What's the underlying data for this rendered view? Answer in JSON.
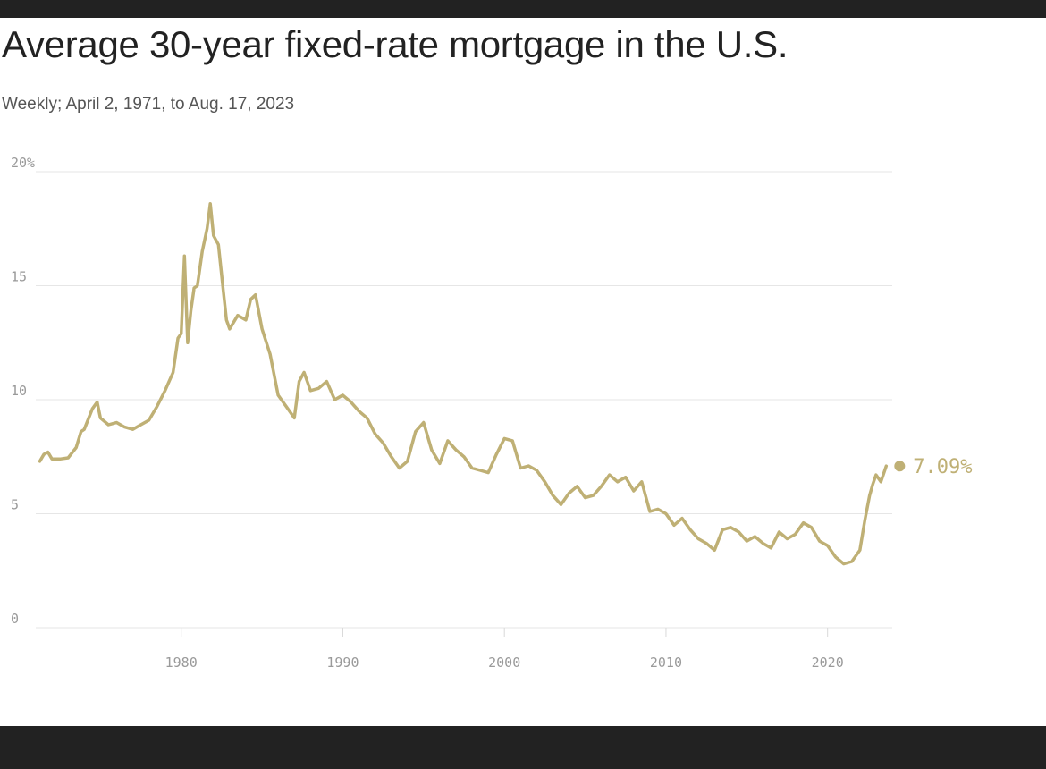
{
  "title": "Average 30-year fixed-rate mortgage in the U.S.",
  "subtitle": "Weekly; April 2, 1971, to Aug. 17, 2023",
  "colors": {
    "line": "#BFB075",
    "grid": "#e6e6e6",
    "ticks": "#9a9a9a"
  },
  "chart_data": {
    "type": "line",
    "title": "Average 30-year fixed-rate mortgage in the U.S.",
    "subtitle": "Weekly; April 2, 1971, to Aug. 17, 2023",
    "xlabel": "",
    "ylabel": "",
    "xlim": [
      1971,
      2024
    ],
    "ylim": [
      0,
      20
    ],
    "grid": true,
    "legend": "none",
    "x_ticks": [
      {
        "value": 1980,
        "label": "1980"
      },
      {
        "value": 1990,
        "label": "1990"
      },
      {
        "value": 2000,
        "label": "2000"
      },
      {
        "value": 2010,
        "label": "2010"
      },
      {
        "value": 2020,
        "label": "2020"
      }
    ],
    "y_ticks": [
      {
        "value": 0,
        "label": "0"
      },
      {
        "value": 5,
        "label": "5"
      },
      {
        "value": 10,
        "label": "10"
      },
      {
        "value": 15,
        "label": "15"
      },
      {
        "value": 20,
        "label": "20%"
      }
    ],
    "end_label": {
      "x": 2023.63,
      "y": 7.09,
      "text": "7.09%"
    },
    "series": [
      {
        "x": [
          1971.25,
          1971.5,
          1971.75,
          1972.0,
          1972.5,
          1973.0,
          1973.5,
          1973.8,
          1974.0,
          1974.5,
          1974.8,
          1975.0,
          1975.5,
          1976.0,
          1976.5,
          1977.0,
          1977.5,
          1978.0,
          1978.5,
          1979.0,
          1979.5,
          1979.8,
          1980.0,
          1980.2,
          1980.4,
          1980.6,
          1980.8,
          1981.0,
          1981.3,
          1981.6,
          1981.8,
          1982.0,
          1982.3,
          1982.6,
          1982.8,
          1983.0,
          1983.5,
          1984.0,
          1984.3,
          1984.6,
          1985.0,
          1985.5,
          1986.0,
          1986.5,
          1987.0,
          1987.3,
          1987.6,
          1988.0,
          1988.5,
          1989.0,
          1989.5,
          1990.0,
          1990.5,
          1991.0,
          1991.5,
          1992.0,
          1992.5,
          1993.0,
          1993.5,
          1994.0,
          1994.5,
          1995.0,
          1995.5,
          1996.0,
          1996.5,
          1997.0,
          1997.5,
          1998.0,
          1998.5,
          1999.0,
          1999.5,
          2000.0,
          2000.5,
          2001.0,
          2001.5,
          2002.0,
          2002.5,
          2003.0,
          2003.5,
          2004.0,
          2004.5,
          2005.0,
          2005.5,
          2006.0,
          2006.5,
          2007.0,
          2007.5,
          2008.0,
          2008.5,
          2009.0,
          2009.5,
          2010.0,
          2010.5,
          2011.0,
          2011.5,
          2012.0,
          2012.5,
          2013.0,
          2013.5,
          2014.0,
          2014.5,
          2015.0,
          2015.5,
          2016.0,
          2016.5,
          2017.0,
          2017.5,
          2018.0,
          2018.5,
          2019.0,
          2019.5,
          2020.0,
          2020.5,
          2021.0,
          2021.5,
          2022.0,
          2022.3,
          2022.6,
          2022.8,
          2023.0,
          2023.3,
          2023.63
        ],
        "y": [
          7.3,
          7.6,
          7.7,
          7.4,
          7.4,
          7.45,
          7.9,
          8.6,
          8.7,
          9.6,
          9.9,
          9.2,
          8.9,
          9.0,
          8.8,
          8.7,
          8.9,
          9.1,
          9.7,
          10.4,
          11.2,
          12.7,
          12.9,
          16.3,
          12.5,
          13.9,
          14.9,
          15.0,
          16.5,
          17.5,
          18.6,
          17.2,
          16.8,
          14.8,
          13.5,
          13.1,
          13.7,
          13.5,
          14.4,
          14.6,
          13.1,
          12.0,
          10.2,
          9.7,
          9.2,
          10.8,
          11.2,
          10.4,
          10.5,
          10.8,
          10.0,
          10.2,
          9.9,
          9.5,
          9.2,
          8.5,
          8.1,
          7.5,
          7.0,
          7.3,
          8.6,
          9.0,
          7.8,
          7.2,
          8.2,
          7.8,
          7.5,
          7.0,
          6.9,
          6.8,
          7.6,
          8.3,
          8.2,
          7.0,
          7.1,
          6.9,
          6.4,
          5.8,
          5.4,
          5.9,
          6.2,
          5.7,
          5.8,
          6.2,
          6.7,
          6.4,
          6.6,
          6.0,
          6.4,
          5.1,
          5.2,
          5.0,
          4.5,
          4.8,
          4.3,
          3.9,
          3.7,
          3.4,
          4.3,
          4.4,
          4.2,
          3.8,
          4.0,
          3.7,
          3.5,
          4.2,
          3.9,
          4.1,
          4.6,
          4.4,
          3.8,
          3.6,
          3.1,
          2.8,
          2.9,
          3.4,
          4.7,
          5.8,
          6.3,
          6.7,
          6.4,
          7.09
        ]
      }
    ]
  }
}
